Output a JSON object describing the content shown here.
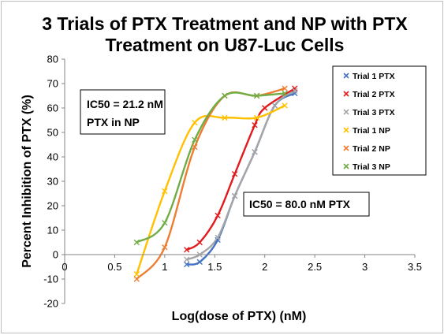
{
  "chart_data": {
    "type": "scatter",
    "title_lines": [
      "3 Trials of PTX Treatment and NP with PTX",
      "Treatment on U87-Luc Cells"
    ],
    "xlabel": "Log(dose of PTX) (nM)",
    "ylabel": "Percent Inhibition of PTX (%)",
    "xlim": [
      0,
      3.5
    ],
    "ylim": [
      -20,
      80
    ],
    "xticks": [
      0,
      0.5,
      1,
      1.5,
      2,
      2.5,
      3,
      3.5
    ],
    "yticks": [
      -20,
      -10,
      0,
      10,
      20,
      30,
      40,
      50,
      60,
      70,
      80
    ],
    "xtick_labels": [
      "0",
      "0.5",
      "1",
      "1.5",
      "2",
      "2.5",
      "3",
      "3.5"
    ],
    "ytick_labels": [
      "-20",
      "-10",
      "0",
      "10",
      "20",
      "30",
      "40",
      "50",
      "60",
      "70",
      "80"
    ],
    "grid": false,
    "legend_position": "right",
    "marker": "x",
    "series": [
      {
        "name": "Trial 1 PTX",
        "color": "#4472c4",
        "x": [
          1.22,
          1.35,
          1.53,
          1.7,
          1.9,
          2.1,
          2.3
        ],
        "y": [
          -4,
          -3,
          6,
          24,
          42,
          61,
          66
        ]
      },
      {
        "name": "Trial 2 PTX",
        "color": "#e31a1c",
        "x": [
          1.22,
          1.35,
          1.53,
          1.7,
          1.9,
          2.0,
          2.3
        ],
        "y": [
          2,
          5,
          16,
          33,
          53,
          60,
          68
        ]
      },
      {
        "name": "Trial 3 PTX",
        "color": "#a6a6a6",
        "x": [
          1.22,
          1.35,
          1.53,
          1.7,
          1.9,
          2.1,
          2.3
        ],
        "y": [
          -2,
          0,
          7,
          24,
          42,
          61,
          67
        ]
      },
      {
        "name": "Trial 1 NP",
        "color": "#ffc000",
        "x": [
          0.72,
          1.0,
          1.3,
          1.6,
          1.92,
          2.2
        ],
        "y": [
          -8,
          26,
          54,
          56,
          56,
          61
        ]
      },
      {
        "name": "Trial 2 NP",
        "color": "#ed7d31",
        "x": [
          0.72,
          1.0,
          1.3,
          1.6,
          1.92,
          2.2
        ],
        "y": [
          -10,
          3,
          44,
          65,
          65,
          68
        ]
      },
      {
        "name": "Trial 3 NP",
        "color": "#70ad47",
        "x": [
          0.72,
          1.0,
          1.3,
          1.6,
          1.92,
          2.2
        ],
        "y": [
          5,
          13,
          47,
          65,
          65,
          66
        ]
      }
    ],
    "annotations": [
      {
        "lines": [
          "IC50 = 21.2 nM",
          "PTX in NP"
        ]
      },
      {
        "lines": [
          "IC50 = 80.0 nM PTX"
        ]
      }
    ]
  }
}
